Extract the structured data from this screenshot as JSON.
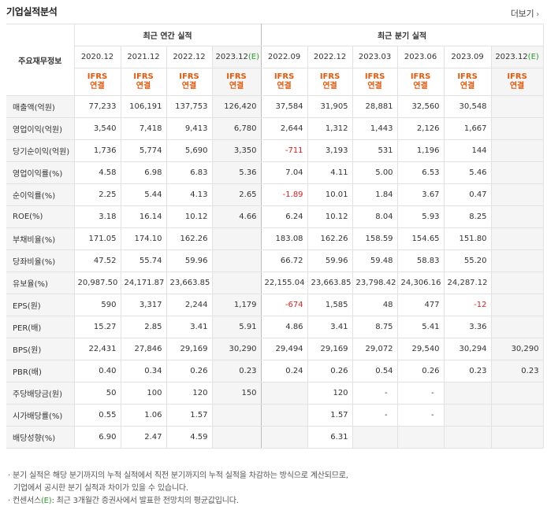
{
  "title": "기업실적분석",
  "more_label": "더보기",
  "header": {
    "corner_label": "주요재무정보",
    "annual_group": "최근 연간 실적",
    "quarter_group": "최근 분기 실적",
    "annual_periods": [
      "2020.12",
      "2021.12",
      "2022.12",
      "2023.12"
    ],
    "annual_est_suffix": "(E)",
    "quarter_periods": [
      "2022.09",
      "2022.12",
      "2023.03",
      "2023.06",
      "2023.09",
      "2023.12"
    ],
    "quarter_est_suffix": "(E)",
    "ifrs_line1": "IFRS",
    "ifrs_line2": "연결"
  },
  "rows": [
    {
      "label": "매출액(억원)",
      "values": [
        "77,233",
        "106,191",
        "137,753",
        "126,420",
        "37,584",
        "31,905",
        "28,881",
        "32,560",
        "30,548",
        ""
      ],
      "sep": false
    },
    {
      "label": "영업이익(억원)",
      "values": [
        "3,540",
        "7,418",
        "9,413",
        "6,780",
        "2,644",
        "1,312",
        "1,443",
        "2,126",
        "1,667",
        ""
      ],
      "sep": false
    },
    {
      "label": "당기순이익(억원)",
      "values": [
        "1,736",
        "5,774",
        "5,690",
        "3,350",
        "-711",
        "3,193",
        "531",
        "1,196",
        "144",
        ""
      ],
      "sep": false
    },
    {
      "label": "영업이익률(%)",
      "values": [
        "4.58",
        "6.98",
        "6.83",
        "5.36",
        "7.04",
        "4.11",
        "5.00",
        "6.53",
        "5.46",
        ""
      ],
      "sep": true
    },
    {
      "label": "순이익률(%)",
      "values": [
        "2.25",
        "5.44",
        "4.13",
        "2.65",
        "-1.89",
        "10.01",
        "1.84",
        "3.67",
        "0.47",
        ""
      ],
      "sep": false
    },
    {
      "label": "ROE(%)",
      "values": [
        "3.18",
        "16.14",
        "10.12",
        "4.66",
        "6.24",
        "10.12",
        "8.04",
        "5.93",
        "8.25",
        ""
      ],
      "sep": false
    },
    {
      "label": "부채비율(%)",
      "values": [
        "171.05",
        "174.10",
        "162.26",
        "",
        "183.08",
        "162.26",
        "158.59",
        "154.65",
        "151.80",
        ""
      ],
      "sep": true
    },
    {
      "label": "당좌비율(%)",
      "values": [
        "47.52",
        "55.74",
        "59.96",
        "",
        "66.72",
        "59.96",
        "59.48",
        "58.83",
        "55.20",
        ""
      ],
      "sep": false
    },
    {
      "label": "유보율(%)",
      "values": [
        "20,987.50",
        "24,171.87",
        "23,663.85",
        "",
        "22,155.04",
        "23,663.85",
        "23,798.42",
        "24,306.16",
        "24,287.12",
        ""
      ],
      "sep": false
    },
    {
      "label": "EPS(원)",
      "values": [
        "590",
        "3,317",
        "2,244",
        "1,179",
        "-674",
        "1,585",
        "48",
        "477",
        "-12",
        ""
      ],
      "sep": true
    },
    {
      "label": "PER(배)",
      "values": [
        "15.27",
        "2.85",
        "3.41",
        "5.91",
        "4.86",
        "3.41",
        "8.75",
        "5.41",
        "3.36",
        ""
      ],
      "sep": false
    },
    {
      "label": "BPS(원)",
      "values": [
        "22,431",
        "27,846",
        "29,169",
        "30,290",
        "29,494",
        "29,169",
        "29,072",
        "29,540",
        "30,294",
        "30,290"
      ],
      "sep": false
    },
    {
      "label": "PBR(배)",
      "values": [
        "0.40",
        "0.34",
        "0.26",
        "0.23",
        "0.24",
        "0.26",
        "0.54",
        "0.26",
        "0.23",
        "0.23"
      ],
      "sep": false
    },
    {
      "label": "주당배당금(원)",
      "values": [
        "50",
        "100",
        "120",
        "150",
        "",
        "120",
        "-",
        "-",
        "",
        ""
      ],
      "sep": true
    },
    {
      "label": "시가배당률(%)",
      "values": [
        "0.55",
        "1.06",
        "1.57",
        "",
        "",
        "1.57",
        "-",
        "-",
        "",
        ""
      ],
      "sep": false
    },
    {
      "label": "배당성향(%)",
      "values": [
        "6.90",
        "2.47",
        "4.59",
        "",
        "",
        "6.31",
        "",
        "",
        "",
        ""
      ],
      "sep": false
    }
  ],
  "notes": {
    "line1": "분기 실적은 해당 분기까지의 누적 실적에서 직전 분기까지의 누적 실적을 차감하는 방식으로 계산되므로,",
    "line2": "기업에서 공시한 분기 실적과 차이가 있을 수 있습니다.",
    "line3_prefix": "컨센서스",
    "line3_tag": "(E)",
    "line3_suffix": ": 최근 3개월간 증권사에서 발표한 전망치의 평균값입니다."
  },
  "colors": {
    "ifrs": "#e8590c",
    "estimate": "#2c9b2c",
    "negative": "#d92121"
  }
}
